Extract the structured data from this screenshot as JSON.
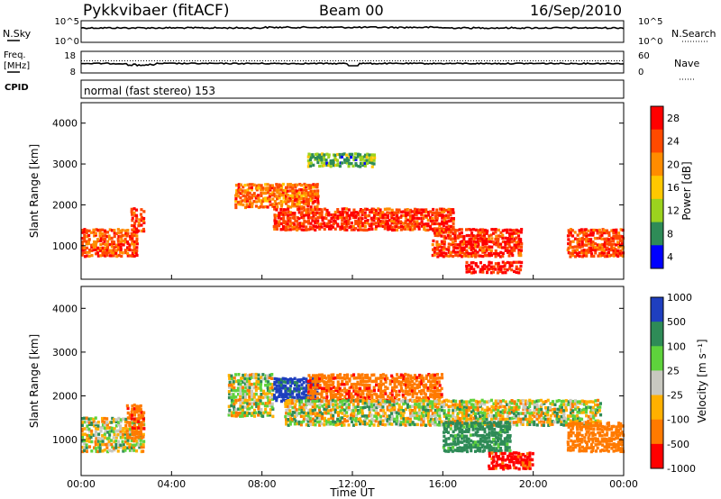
{
  "header": {
    "station": "Pykkvibaer (fitACF)",
    "beam": "Beam 00",
    "date": "16/Sep/2010"
  },
  "noise_panel": {
    "left_label": "N.Sky",
    "right_label": "N.Search",
    "left_ticks": [
      "10^5",
      "10^0"
    ],
    "right_ticks": [
      "10^5",
      "10^0"
    ]
  },
  "freq_panel": {
    "left_label_1": "Freq.",
    "left_label_2": "[MHz]",
    "right_label": "Nave",
    "left_ticks": [
      "18",
      "8"
    ],
    "right_ticks": [
      "60",
      "0"
    ]
  },
  "cpid_panel": {
    "label": "CPID",
    "text": "normal (fast stereo) 153"
  },
  "power_panel": {
    "ylabel": "Slant Range [km]",
    "colorbar_label": "Power [dB]",
    "colorbar_ticks": [
      "28",
      "24",
      "20",
      "16",
      "12",
      "8",
      "4"
    ],
    "colorbar_colors": [
      "#ff0000",
      "#ff4a00",
      "#ff8c00",
      "#ffc800",
      "#9bd21e",
      "#2e8b57",
      "#0000ff"
    ]
  },
  "velocity_panel": {
    "ylabel": "Slant Range [km]",
    "colorbar_label": "Velocity [m s⁻¹]",
    "colorbar_ticks": [
      "1000",
      "500",
      "100",
      "25",
      "-25",
      "-100",
      "-500",
      "-1000"
    ],
    "colorbar_colors": [
      "#1f3fbf",
      "#2e8b57",
      "#5ed23c",
      "#c8c8c0",
      "#ffb000",
      "#ff7a00",
      "#ff0000"
    ]
  },
  "xaxis": {
    "label": "Time UT",
    "ticks": [
      "00:00",
      "04:00",
      "08:00",
      "12:00",
      "16:00",
      "20:00",
      "00:00"
    ]
  },
  "chart_data": [
    {
      "type": "line",
      "title": "",
      "ylabel": "N.Sky / N.Search",
      "x_range": [
        0,
        24
      ],
      "note": "noise levels near top of log scale for full day"
    },
    {
      "type": "line",
      "ylabel": "Freq. [MHz]",
      "ylim": [
        8,
        18
      ],
      "y2label": "Nave",
      "y2lim": [
        0,
        60
      ],
      "x_range": [
        0,
        24
      ]
    },
    {
      "type": "heatmap",
      "title": "Power [dB]",
      "xlabel": "Time UT",
      "ylabel": "Slant Range [km]",
      "xlim": [
        0,
        24
      ],
      "ylim": [
        180,
        4500
      ],
      "x_ticks": [
        0,
        4,
        8,
        12,
        16,
        20,
        24
      ],
      "y_ticks": [
        1000,
        2000,
        3000,
        4000
      ],
      "color_levels": [
        4,
        8,
        12,
        16,
        20,
        24,
        28
      ],
      "features": [
        {
          "t": [
            0.0,
            2.5
          ],
          "range": [
            700,
            1400
          ],
          "power": 24
        },
        {
          "t": [
            2.2,
            2.8
          ],
          "range": [
            1300,
            1900
          ],
          "power": 26
        },
        {
          "t": [
            6.8,
            10.5
          ],
          "range": [
            1900,
            2500
          ],
          "power": 22
        },
        {
          "t": [
            8.5,
            16.5
          ],
          "range": [
            1350,
            1900
          ],
          "power": 26
        },
        {
          "t": [
            15.5,
            19.5
          ],
          "range": [
            700,
            1400
          ],
          "power": 26
        },
        {
          "t": [
            17.0,
            19.5
          ],
          "range": [
            300,
            600
          ],
          "power": 28
        },
        {
          "t": [
            21.5,
            24.0
          ],
          "range": [
            700,
            1400
          ],
          "power": 24
        },
        {
          "t": [
            10.0,
            13.0
          ],
          "range": [
            2900,
            3250
          ],
          "power": 10
        }
      ]
    },
    {
      "type": "heatmap",
      "title": "Velocity [m s-1]",
      "xlabel": "Time UT",
      "ylabel": "Slant Range [km]",
      "xlim": [
        0,
        24
      ],
      "ylim": [
        180,
        4500
      ],
      "x_ticks": [
        0,
        4,
        8,
        12,
        16,
        20,
        24
      ],
      "y_ticks": [
        1000,
        2000,
        3000,
        4000
      ],
      "color_levels": [
        -1000,
        -500,
        -100,
        -25,
        25,
        100,
        500,
        1000
      ],
      "features": [
        {
          "t": [
            0.0,
            2.8
          ],
          "range": [
            700,
            1500
          ],
          "velocity": 0
        },
        {
          "t": [
            2.0,
            2.8
          ],
          "range": [
            1000,
            1800
          ],
          "velocity": -400
        },
        {
          "t": [
            6.5,
            8.5
          ],
          "range": [
            1500,
            2500
          ],
          "velocity": 0
        },
        {
          "t": [
            8.5,
            10.5
          ],
          "range": [
            1850,
            2400
          ],
          "velocity": 600
        },
        {
          "t": [
            10.0,
            16.0
          ],
          "range": [
            1850,
            2500
          ],
          "velocity": -400
        },
        {
          "t": [
            9.0,
            23.0
          ],
          "range": [
            1300,
            1900
          ],
          "velocity": 0
        },
        {
          "t": [
            16.0,
            19.0
          ],
          "range": [
            700,
            1400
          ],
          "velocity": 200
        },
        {
          "t": [
            18.0,
            20.0
          ],
          "range": [
            300,
            700
          ],
          "velocity": -600
        },
        {
          "t": [
            21.5,
            24.0
          ],
          "range": [
            700,
            1400
          ],
          "velocity": -300
        }
      ]
    }
  ]
}
